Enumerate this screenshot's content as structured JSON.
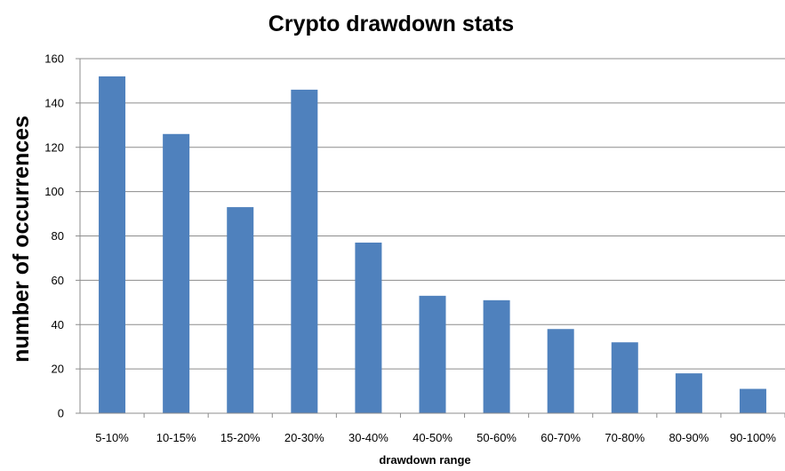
{
  "colors": {
    "bar": "#4F81BD",
    "grid": "#8C8C8C",
    "axis": "#8C8C8C",
    "text": "#000000",
    "background": "#FFFFFF"
  },
  "chart_data": {
    "type": "bar",
    "title": "Crypto drawdown stats",
    "xlabel": "drawdown range",
    "ylabel": "number of occurrences",
    "categories": [
      "5-10%",
      "10-15%",
      "15-20%",
      "20-30%",
      "30-40%",
      "40-50%",
      "50-60%",
      "60-70%",
      "70-80%",
      "80-90%",
      "90-100%"
    ],
    "values": [
      152,
      126,
      93,
      146,
      77,
      53,
      51,
      38,
      32,
      18,
      11
    ],
    "ylim": [
      0,
      160
    ],
    "yticks": [
      0,
      20,
      40,
      60,
      80,
      100,
      120,
      140,
      160
    ],
    "grid": true,
    "legend": "none"
  }
}
